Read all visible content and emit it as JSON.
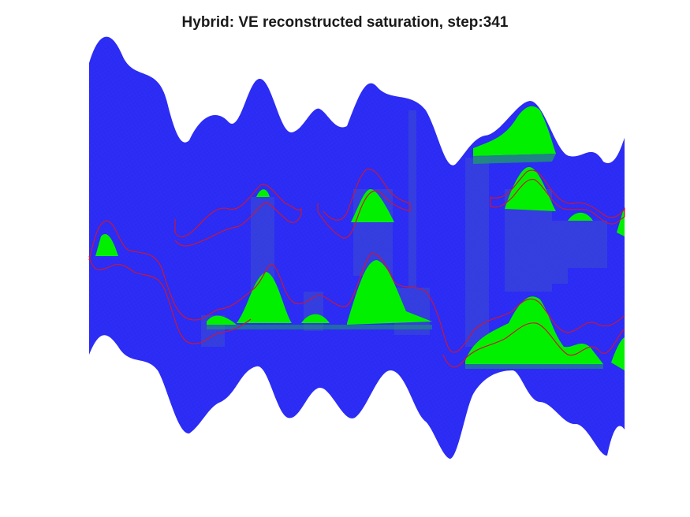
{
  "figure": {
    "title": "Hybrid: VE reconstructed saturation, step:341"
  },
  "colors": {
    "domain_fill": "#2b2bf6",
    "domain_mesh": "#3737ee",
    "plume_fill": "#00f000",
    "plume_transition": "#1e9a6a",
    "haze": "#3f58b8",
    "seal_outline": "#c81838"
  }
}
